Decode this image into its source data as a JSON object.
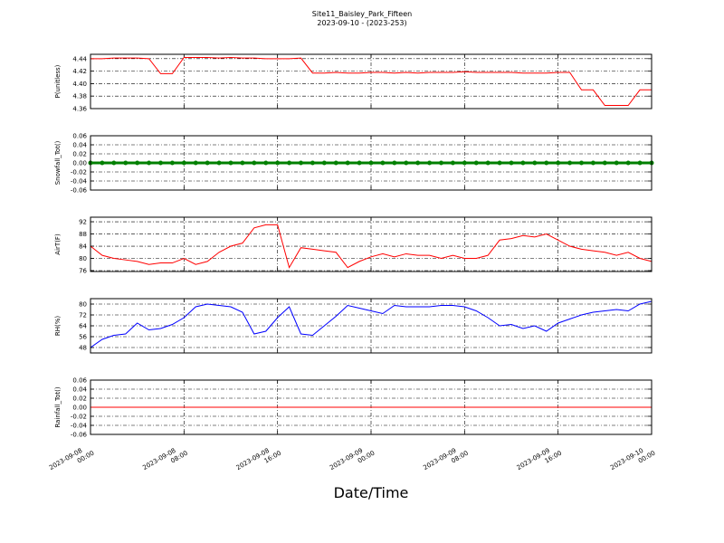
{
  "title": "Site11_Baisley_Park_Fifteen",
  "subtitle": "2023-09-10 - (2023-253)",
  "x_axis": {
    "label": "Date/Time",
    "xlim": [
      0,
      48
    ],
    "xticks": [
      {
        "value": 0,
        "label": "2023-09-08 00:00"
      },
      {
        "value": 8,
        "label": "2023-09-08 08:00"
      },
      {
        "value": 16,
        "label": "2023-09-08 16:00"
      },
      {
        "value": 24,
        "label": "2023-09-09 00:00"
      },
      {
        "value": 32,
        "label": "2023-09-09 08:00"
      },
      {
        "value": 40,
        "label": "2023-09-09 16:00"
      },
      {
        "value": 48,
        "label": "2023-09-10 00:00"
      }
    ],
    "x": [
      0,
      1,
      2,
      3,
      4,
      5,
      6,
      7,
      8,
      9,
      10,
      11,
      12,
      13,
      14,
      15,
      16,
      17,
      18,
      19,
      20,
      21,
      22,
      23,
      24,
      25,
      26,
      27,
      28,
      29,
      30,
      31,
      32,
      33,
      34,
      35,
      36,
      37,
      38,
      39,
      40,
      41,
      42,
      43,
      44,
      45,
      46,
      47,
      48
    ]
  },
  "chart_data": [
    {
      "type": "line",
      "ylabel": "P(unitless)",
      "ylim": [
        4.36,
        4.447
      ],
      "grid": true,
      "color": "#ff0000",
      "marker": false,
      "yticks": [
        {
          "value": 4.36,
          "label": "4.36"
        },
        {
          "value": 4.38,
          "label": "4.38"
        },
        {
          "value": 4.4,
          "label": "4.40"
        },
        {
          "value": 4.42,
          "label": "4.42"
        },
        {
          "value": 4.44,
          "label": "4.44"
        }
      ],
      "values": [
        4.44,
        4.44,
        4.441,
        4.441,
        4.441,
        4.44,
        4.416,
        4.416,
        4.442,
        4.442,
        4.442,
        4.441,
        4.442,
        4.441,
        4.441,
        4.44,
        4.44,
        4.44,
        4.441,
        4.417,
        4.417,
        4.418,
        4.417,
        4.417,
        4.418,
        4.418,
        4.417,
        4.418,
        4.417,
        4.418,
        4.418,
        4.418,
        4.419,
        4.418,
        4.418,
        4.418,
        4.418,
        4.417,
        4.417,
        4.417,
        4.418,
        4.418,
        4.39,
        4.39,
        4.365,
        4.365,
        4.365,
        4.39,
        4.39
      ]
    },
    {
      "type": "line",
      "ylabel": "Snowfall_Tot()",
      "ylim": [
        -0.06,
        0.06
      ],
      "grid": true,
      "color": "#008000",
      "marker": true,
      "yticks": [
        -0.06,
        -0.04,
        -0.02,
        {
          "value": 0,
          "label": "0.00"
        },
        0.02,
        0.04,
        0.06
      ],
      "values": [
        0,
        0,
        0,
        0,
        0,
        0,
        0,
        0,
        0,
        0,
        0,
        0,
        0,
        0,
        0,
        0,
        0,
        0,
        0,
        0,
        0,
        0,
        0,
        0,
        0,
        0,
        0,
        0,
        0,
        0,
        0,
        0,
        0,
        0,
        0,
        0,
        0,
        0,
        0,
        0,
        0,
        0,
        0,
        0,
        0,
        0,
        0,
        0,
        0
      ]
    },
    {
      "type": "line",
      "ylabel": "AirT(F)",
      "ylim": [
        75.7,
        93.5
      ],
      "grid": true,
      "color": "#ff0000",
      "marker": false,
      "yticks": [
        76,
        80,
        84,
        88,
        92
      ],
      "values": [
        84,
        81,
        80,
        79.5,
        79,
        78,
        78.5,
        78.5,
        80,
        78,
        79,
        82,
        84,
        85,
        90,
        91,
        91,
        77,
        83.5,
        83,
        82.5,
        82,
        77,
        79,
        80.5,
        81.5,
        80.5,
        81.5,
        81,
        81,
        80,
        81,
        80,
        80,
        81,
        86,
        86.5,
        87.5,
        87,
        88,
        86,
        84,
        83,
        82.5,
        82,
        81,
        82,
        80,
        79
      ]
    },
    {
      "type": "line",
      "ylabel": "RH(%)",
      "ylim": [
        44,
        84
      ],
      "grid": true,
      "color": "#0000ff",
      "marker": false,
      "yticks": [
        48,
        56,
        64,
        72,
        80
      ],
      "values": [
        48,
        54,
        57,
        58,
        66,
        61,
        62,
        65,
        70,
        78,
        80,
        79,
        78,
        74,
        58,
        60,
        70,
        78,
        58,
        57,
        64,
        71,
        79,
        77,
        75,
        73,
        79,
        78,
        78,
        78,
        79,
        79,
        78,
        75,
        70,
        64,
        65,
        62,
        64,
        60,
        66,
        69,
        72,
        74,
        75,
        76,
        75,
        80,
        82
      ]
    },
    {
      "type": "line",
      "ylabel": "Rainfall_Tot()",
      "ylim": [
        -0.06,
        0.06
      ],
      "grid": true,
      "color": "#ff0000",
      "marker": false,
      "yticks": [
        -0.06,
        -0.04,
        -0.02,
        {
          "value": 0,
          "label": "0.00"
        },
        0.02,
        0.04,
        0.06
      ],
      "values": [
        0,
        0,
        0,
        0,
        0,
        0,
        0,
        0,
        0,
        0,
        0,
        0,
        0,
        0,
        0,
        0,
        0,
        0,
        0,
        0,
        0,
        0,
        0,
        0,
        0,
        0,
        0,
        0,
        0,
        0,
        0,
        0,
        0,
        0,
        0,
        0,
        0,
        0,
        0,
        0,
        0,
        0,
        0,
        0,
        0,
        0,
        0,
        0,
        0
      ]
    }
  ]
}
